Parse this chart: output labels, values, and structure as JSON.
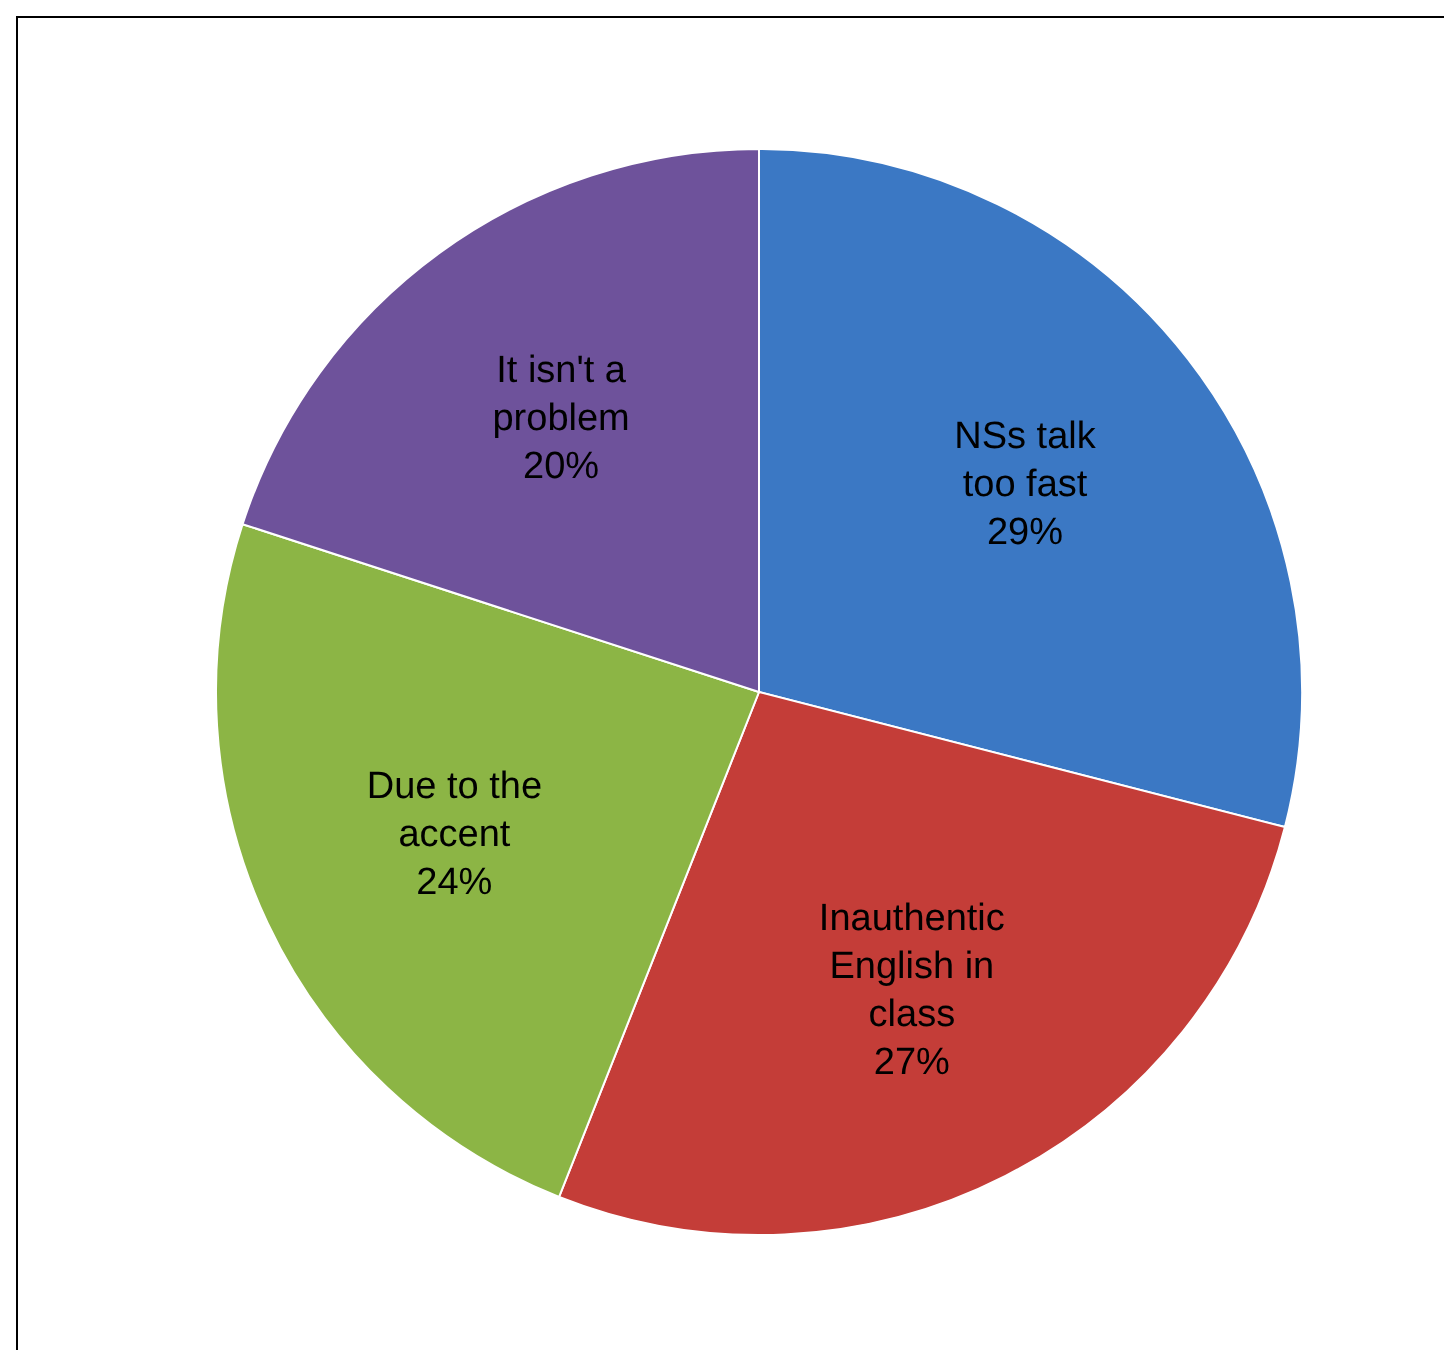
{
  "chart_data": {
    "type": "pie",
    "categories": [
      "NSs talk too fast",
      "Inauthentic English in class",
      "Due to the accent",
      "It isn't a problem"
    ],
    "values": [
      29,
      27,
      24,
      20
    ],
    "colors": [
      "#3b78c4",
      "#c43d38",
      "#8cb545",
      "#6e529b"
    ],
    "value_labels": [
      "29%",
      "27%",
      "24%",
      "20%"
    ],
    "legend": false
  }
}
